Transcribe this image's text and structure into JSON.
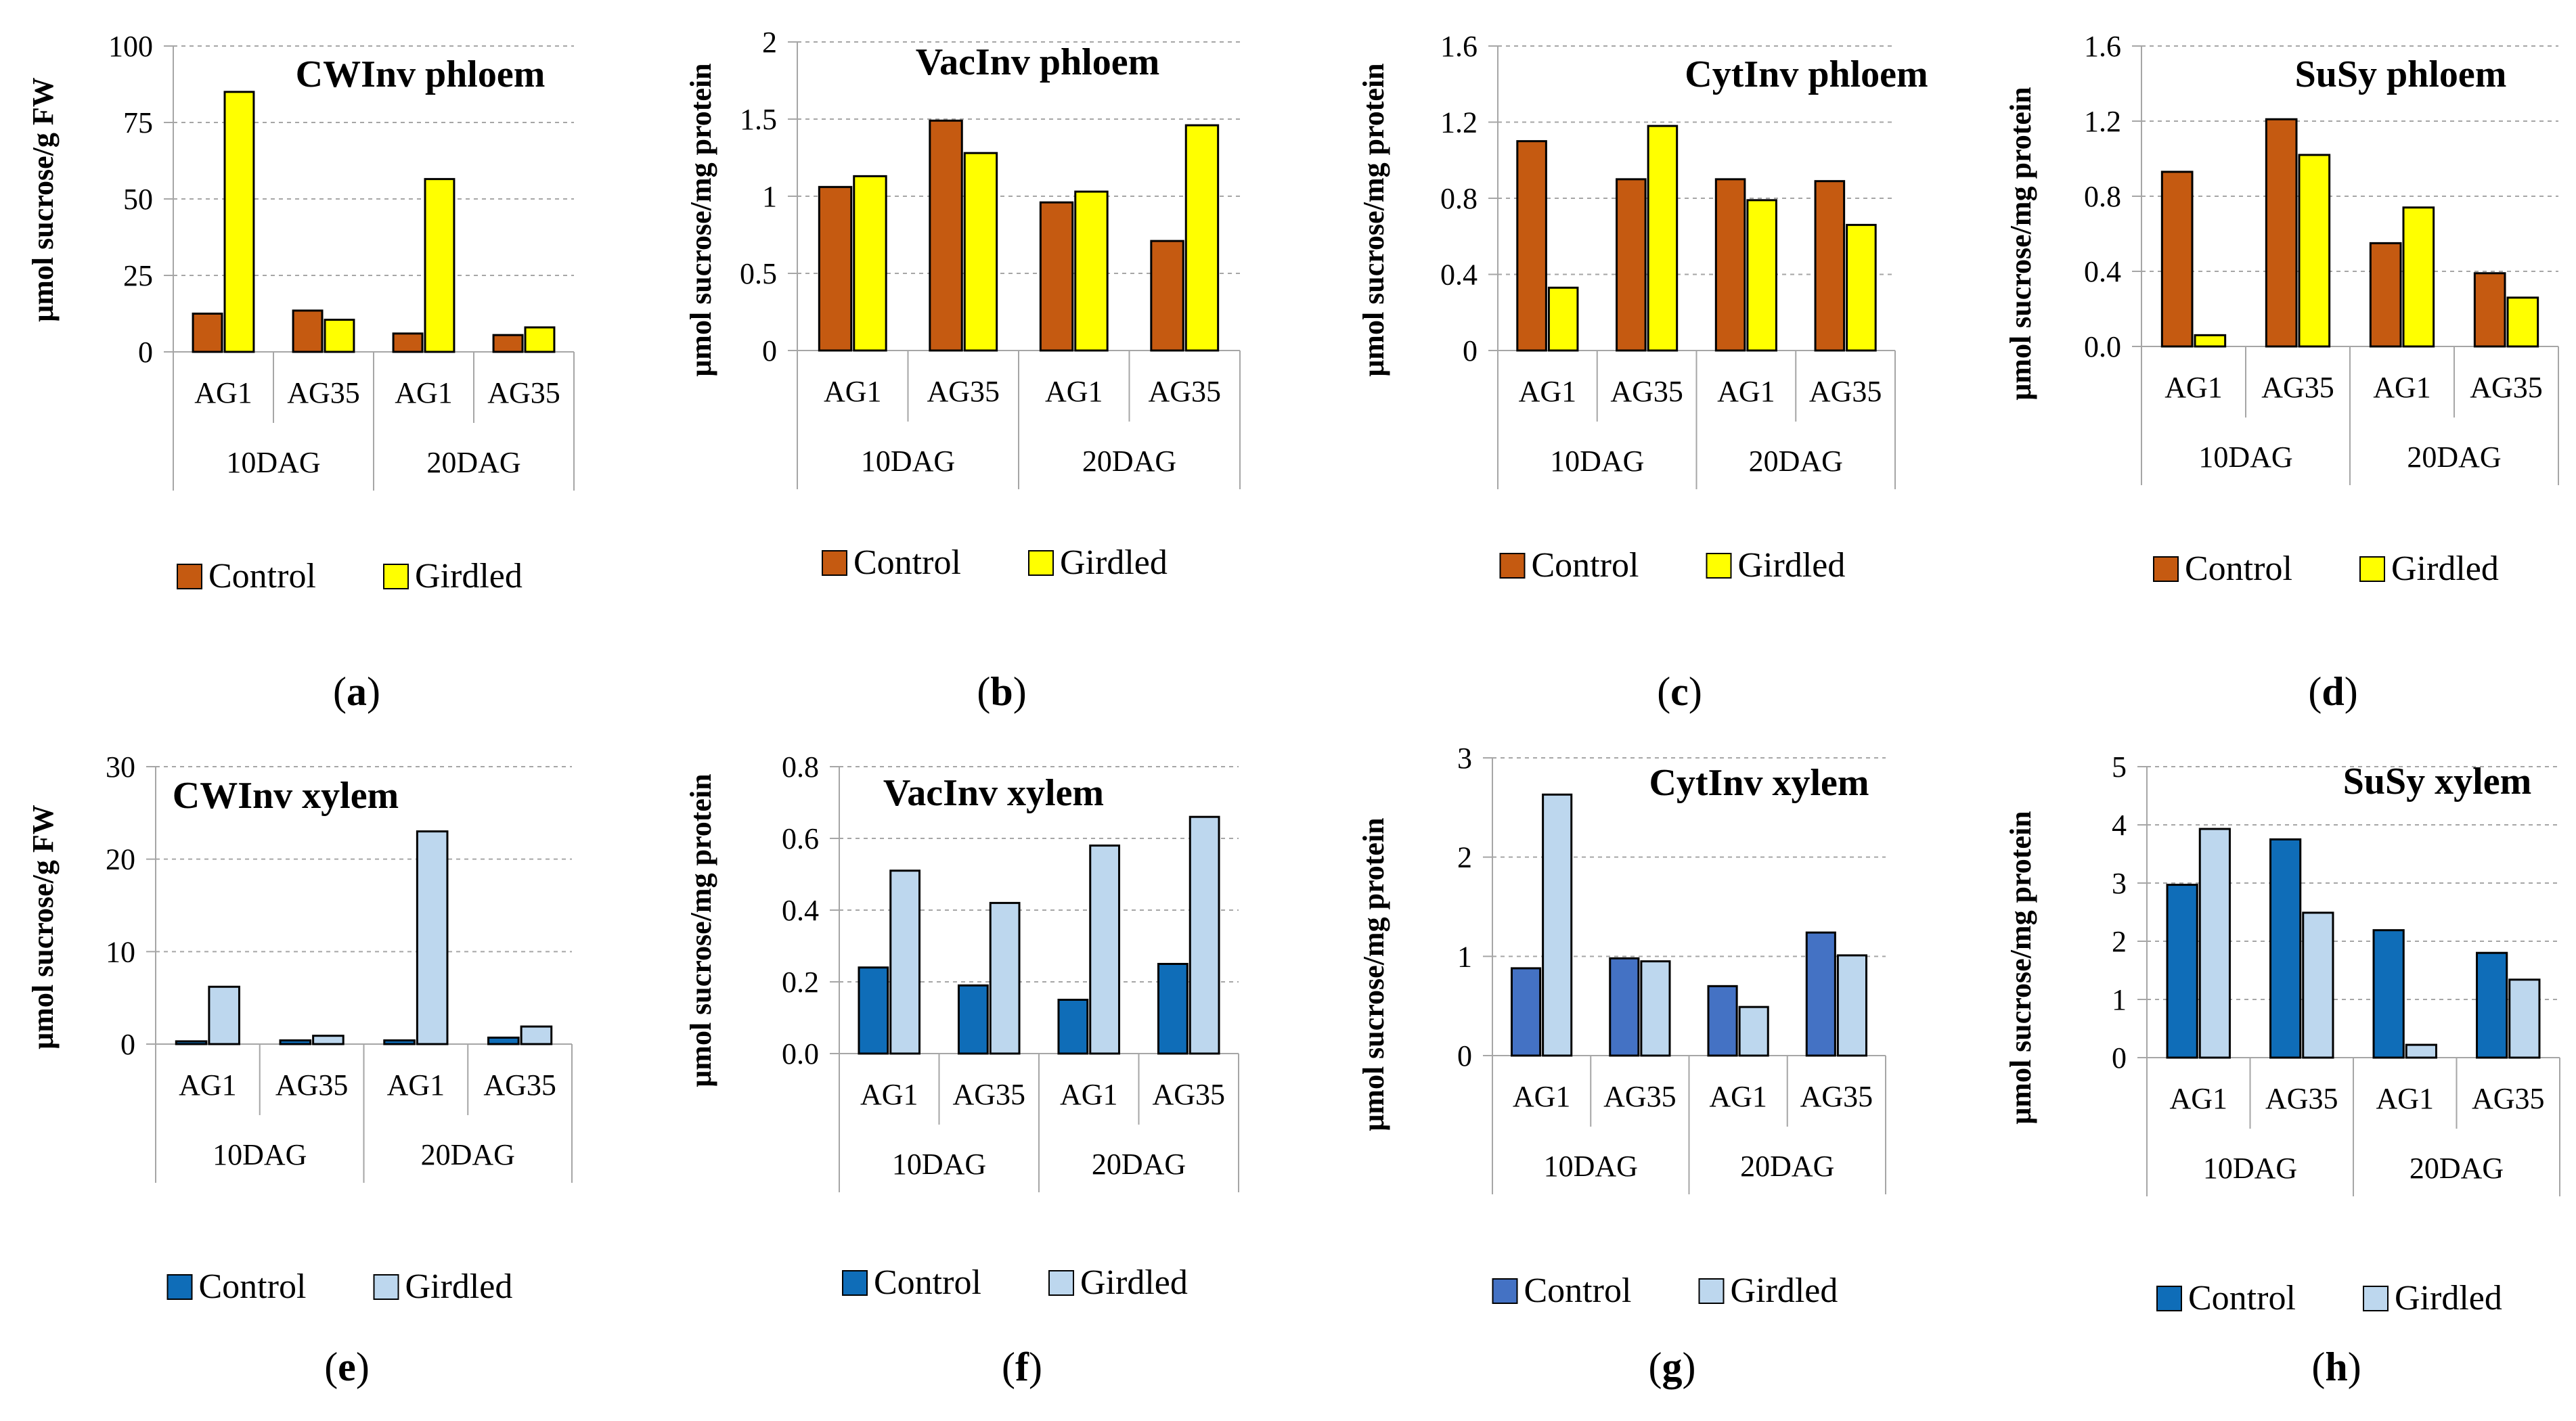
{
  "colors": {
    "control_phloem": "#c55a11",
    "girdled_phloem": "#ffff00",
    "control_xylem": "#0f6db8",
    "control_xylem_alt": "#4472c4",
    "girdled_xylem": "#bdd7ee",
    "bar_outline": "#000000",
    "gridline": "#a6a6a6",
    "axis": "#a6a6a6"
  },
  "chart_data": [
    {
      "panel": "a",
      "type": "bar",
      "title": "CWInv phloem",
      "ylabel": "μmol sucrose/g FW",
      "ylim": [
        0,
        100
      ],
      "yticks": [
        "0",
        "25",
        "50",
        "75",
        "100"
      ],
      "categories": [
        "AG1",
        "AG35",
        "AG1",
        "AG35"
      ],
      "groups": [
        "10DAG",
        "20DAG"
      ],
      "series": [
        {
          "name": "Control",
          "values": [
            12.5,
            13.5,
            6,
            5.5
          ]
        },
        {
          "name": "Girdled",
          "values": [
            85,
            10.5,
            56.5,
            8
          ]
        }
      ],
      "legend": [
        "Control",
        "Girdled"
      ],
      "grid": true,
      "legend_position": "bottom"
    },
    {
      "panel": "b",
      "type": "bar",
      "title": "VacInv phloem",
      "ylabel": "μmol sucrose/mg protein",
      "ylim": [
        0,
        2
      ],
      "yticks": [
        "0",
        "0.5",
        "1",
        "1.5",
        "2"
      ],
      "categories": [
        "AG1",
        "AG35",
        "AG1",
        "AG35"
      ],
      "groups": [
        "10DAG",
        "20DAG"
      ],
      "series": [
        {
          "name": "Control",
          "values": [
            1.06,
            1.49,
            0.96,
            0.71
          ]
        },
        {
          "name": "Girdled",
          "values": [
            1.13,
            1.28,
            1.03,
            1.46
          ]
        }
      ],
      "legend": [
        "Control",
        "Girdled"
      ],
      "grid": true,
      "legend_position": "bottom"
    },
    {
      "panel": "c",
      "type": "bar",
      "title": "CytInv phloem",
      "ylabel": "μmol sucrose/mg protein",
      "ylim": [
        0,
        1.6
      ],
      "yticks": [
        "0",
        "0.4",
        "0.8",
        "1.2",
        "1.6"
      ],
      "categories": [
        "AG1",
        "AG35",
        "AG1",
        "AG35"
      ],
      "groups": [
        "10DAG",
        "20DAG"
      ],
      "series": [
        {
          "name": "Control",
          "values": [
            1.1,
            0.9,
            0.9,
            0.89
          ]
        },
        {
          "name": "Girdled",
          "values": [
            0.33,
            1.18,
            0.79,
            0.66
          ]
        }
      ],
      "legend": [
        "Control",
        "Girdled"
      ],
      "grid": true,
      "legend_position": "bottom"
    },
    {
      "panel": "d",
      "type": "bar",
      "title": "SuSy phloem",
      "ylabel": "μmol sucrose/mg protein",
      "ylim": [
        0,
        1.6
      ],
      "yticks": [
        "0.0",
        "0.4",
        "0.8",
        "1.2",
        "1.6"
      ],
      "categories": [
        "AG1",
        "AG35",
        "AG1",
        "AG35"
      ],
      "groups": [
        "10DAG",
        "20DAG"
      ],
      "series": [
        {
          "name": "Control",
          "values": [
            0.93,
            1.21,
            0.55,
            0.39
          ]
        },
        {
          "name": "Girdled",
          "values": [
            0.06,
            1.02,
            0.74,
            0.26
          ]
        }
      ],
      "legend": [
        "Control",
        "Girdled"
      ],
      "grid": true,
      "legend_position": "bottom"
    },
    {
      "panel": "e",
      "type": "bar",
      "title": "CWInv xylem",
      "ylabel": "μmol sucrose/g FW",
      "ylim": [
        0,
        30
      ],
      "yticks": [
        "0",
        "10",
        "20",
        "30"
      ],
      "categories": [
        "AG1",
        "AG35",
        "AG1",
        "AG35"
      ],
      "groups": [
        "10DAG",
        "20DAG"
      ],
      "series": [
        {
          "name": "Control",
          "values": [
            0.3,
            0.4,
            0.4,
            0.7
          ]
        },
        {
          "name": "Girdled",
          "values": [
            6.2,
            0.9,
            23,
            1.9
          ]
        }
      ],
      "legend": [
        "Control",
        "Girdled"
      ],
      "grid": true,
      "legend_position": "bottom"
    },
    {
      "panel": "f",
      "type": "bar",
      "title": "VacInv xylem",
      "ylabel": "μmol sucrose/mg protein",
      "ylim": [
        0,
        0.8
      ],
      "yticks": [
        "0.0",
        "0.2",
        "0.4",
        "0.6",
        "0.8"
      ],
      "categories": [
        "AG1",
        "AG35",
        "AG1",
        "AG35"
      ],
      "groups": [
        "10DAG",
        "20DAG"
      ],
      "series": [
        {
          "name": "Control",
          "values": [
            0.24,
            0.19,
            0.15,
            0.25
          ]
        },
        {
          "name": "Girdled",
          "values": [
            0.51,
            0.42,
            0.58,
            0.66
          ]
        }
      ],
      "legend": [
        "Control",
        "Girdled"
      ],
      "grid": true,
      "legend_position": "bottom"
    },
    {
      "panel": "g",
      "type": "bar",
      "title": "CytInv xylem",
      "ylabel": "μmol sucrose/mg protein",
      "ylim": [
        0,
        3
      ],
      "yticks": [
        "0",
        "1",
        "2",
        "3"
      ],
      "categories": [
        "AG1",
        "AG35",
        "AG1",
        "AG35"
      ],
      "groups": [
        "10DAG",
        "20DAG"
      ],
      "series": [
        {
          "name": "Control",
          "values": [
            0.88,
            0.98,
            0.7,
            1.24
          ]
        },
        {
          "name": "Girdled",
          "values": [
            2.63,
            0.95,
            0.49,
            1.01
          ]
        }
      ],
      "legend": [
        "Control",
        "Girdled"
      ],
      "grid": true,
      "legend_position": "bottom"
    },
    {
      "panel": "h",
      "type": "bar",
      "title": "SuSy xylem",
      "ylabel": "μmol sucrose/mg protein",
      "ylim": [
        0,
        5
      ],
      "yticks": [
        "0",
        "1",
        "2",
        "3",
        "4",
        "5"
      ],
      "categories": [
        "AG1",
        "AG35",
        "AG1",
        "AG35"
      ],
      "groups": [
        "10DAG",
        "20DAG"
      ],
      "series": [
        {
          "name": "Control",
          "values": [
            2.97,
            3.75,
            2.19,
            1.8
          ]
        },
        {
          "name": "Girdled",
          "values": [
            3.93,
            2.49,
            0.22,
            1.34
          ]
        }
      ],
      "legend": [
        "Control",
        "Girdled"
      ],
      "grid": true,
      "legend_position": "bottom"
    }
  ]
}
